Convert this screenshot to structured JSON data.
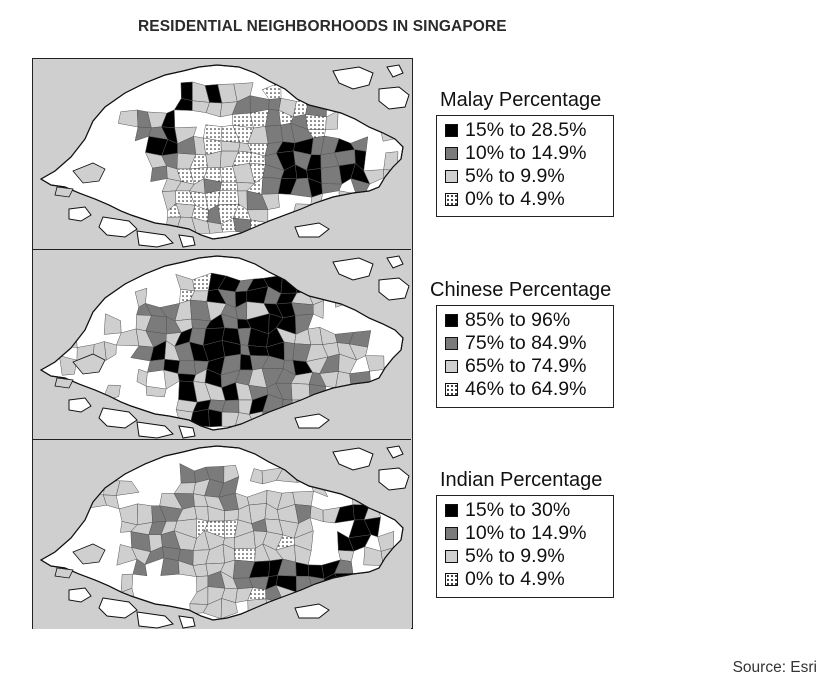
{
  "title": "RESIDENTIAL NEIGHBORHOODS IN SINGAPORE",
  "source": "Source: Esri",
  "colors": {
    "class_1": "#000000",
    "class_2": "#7b7b7b",
    "class_3": "#cfcfcf",
    "class_4": "dotted-white",
    "sea": "#cfcfcf",
    "land_no_data": "#ffffff"
  },
  "maps": [
    {
      "legend_title": "Malay Percentage",
      "classes": [
        "15% to 28.5%",
        "10% to 14.9%",
        "5% to 9.9%",
        "0% to 4.9%"
      ]
    },
    {
      "legend_title": "Chinese Percentage",
      "classes": [
        "85% to 96%",
        "75% to 84.9%",
        "65% to 74.9%",
        "46% to 64.9%"
      ]
    },
    {
      "legend_title": "Indian Percentage",
      "classes": [
        "15% to 30%",
        "10% to 14.9%",
        "5% to 9.9%",
        "0% to 4.9%"
      ]
    }
  ]
}
